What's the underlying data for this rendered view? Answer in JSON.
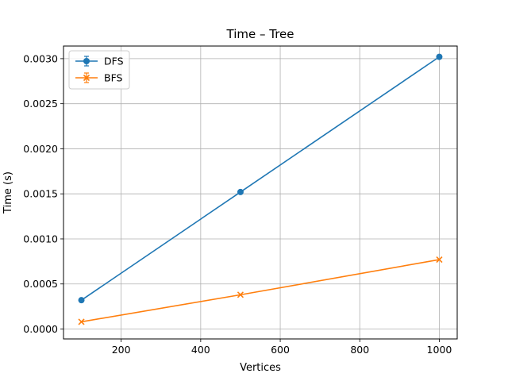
{
  "chart_data": {
    "type": "line",
    "title": "Time – Tree",
    "xlabel": "Vertices",
    "ylabel": "Time (s)",
    "x": [
      100,
      500,
      1000
    ],
    "xlim": [
      55,
      1045
    ],
    "ylim": [
      -0.00011,
      0.00314
    ],
    "xticks": [
      200,
      400,
      600,
      800,
      1000
    ],
    "xtick_labels": [
      "200",
      "400",
      "600",
      "800",
      "1000"
    ],
    "yticks": [
      0.0,
      0.0005,
      0.001,
      0.0015,
      0.002,
      0.0025,
      0.003
    ],
    "ytick_labels": [
      "0.0000",
      "0.0005",
      "0.0010",
      "0.0015",
      "0.0020",
      "0.0025",
      "0.0030"
    ],
    "grid": true,
    "legend_position": "top-left",
    "series": [
      {
        "name": "DFS",
        "values": [
          0.00032,
          0.00152,
          0.00302
        ],
        "color": "#1f77b4",
        "marker": "circle"
      },
      {
        "name": "BFS",
        "values": [
          8e-05,
          0.00038,
          0.00077
        ],
        "color": "#ff7f0e",
        "marker": "x"
      }
    ]
  }
}
